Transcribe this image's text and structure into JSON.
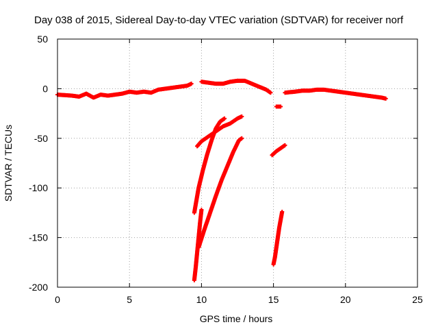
{
  "chart_data": {
    "type": "scatter",
    "title": "Day 038 of 2015, Sidereal Day-to-day VTEC variation (SDTVAR) for receiver norf",
    "xlabel": "GPS time / hours",
    "ylabel": "SDTVAR / TECUs",
    "xlim": [
      0,
      25
    ],
    "ylim": [
      -200,
      50
    ],
    "xticks": [
      0,
      5,
      10,
      15,
      20,
      25
    ],
    "yticks": [
      -200,
      -150,
      -100,
      -50,
      0,
      50
    ],
    "grid": true,
    "marker": "+",
    "color": "#ff0000",
    "series": [
      {
        "name": "arc-1",
        "points": [
          [
            0.0,
            -6
          ],
          [
            0.5,
            -6.5
          ],
          [
            1.0,
            -7
          ],
          [
            1.5,
            -8
          ],
          [
            2.0,
            -5
          ],
          [
            2.5,
            -9
          ],
          [
            3.0,
            -6
          ],
          [
            3.5,
            -7
          ],
          [
            4.0,
            -6
          ],
          [
            4.5,
            -5
          ],
          [
            5.0,
            -3
          ],
          [
            5.5,
            -4
          ],
          [
            6.0,
            -3
          ],
          [
            6.5,
            -4
          ],
          [
            7.0,
            -1
          ],
          [
            7.5,
            0
          ],
          [
            8.0,
            1
          ],
          [
            8.5,
            2
          ],
          [
            9.0,
            3
          ],
          [
            9.3,
            5
          ]
        ]
      },
      {
        "name": "arc-2",
        "points": [
          [
            10.0,
            7
          ],
          [
            10.5,
            6
          ],
          [
            11.0,
            5
          ],
          [
            11.5,
            5
          ],
          [
            12.0,
            7
          ],
          [
            12.5,
            8
          ]
        ]
      },
      {
        "name": "arc-3",
        "points": [
          [
            12.5,
            8
          ],
          [
            13.0,
            8
          ],
          [
            13.5,
            5
          ],
          [
            14.0,
            2
          ],
          [
            14.5,
            -1
          ],
          [
            14.8,
            -4
          ]
        ]
      },
      {
        "name": "arc-4",
        "points": [
          [
            15.8,
            -4
          ],
          [
            16.5,
            -3
          ],
          [
            17.0,
            -2
          ],
          [
            17.5,
            -2
          ],
          [
            18.0,
            -1
          ],
          [
            18.5,
            -1
          ],
          [
            19.0,
            -2
          ],
          [
            19.5,
            -3
          ],
          [
            20.0,
            -4
          ],
          [
            20.5,
            -5
          ],
          [
            21.0,
            -6
          ],
          [
            21.5,
            -7
          ],
          [
            22.0,
            -8
          ],
          [
            22.5,
            -9
          ],
          [
            22.8,
            -10
          ]
        ]
      },
      {
        "name": "arc-5",
        "points": [
          [
            15.2,
            -18
          ],
          [
            15.5,
            -18
          ]
        ]
      },
      {
        "name": "arc-6",
        "points": [
          [
            9.5,
            -125
          ],
          [
            9.8,
            -100
          ],
          [
            10.1,
            -82
          ],
          [
            10.4,
            -66
          ],
          [
            10.7,
            -52
          ],
          [
            11.0,
            -40
          ],
          [
            11.3,
            -33
          ],
          [
            11.6,
            -30
          ]
        ]
      },
      {
        "name": "arc-7",
        "points": [
          [
            9.7,
            -58
          ],
          [
            10.0,
            -53
          ],
          [
            10.5,
            -48
          ],
          [
            11.0,
            -43
          ],
          [
            11.5,
            -38
          ],
          [
            12.0,
            -35
          ],
          [
            12.5,
            -30
          ],
          [
            12.8,
            -28
          ]
        ]
      },
      {
        "name": "arc-8",
        "points": [
          [
            9.5,
            -193
          ],
          [
            9.6,
            -180
          ],
          [
            9.7,
            -165
          ],
          [
            9.8,
            -150
          ],
          [
            9.9,
            -135
          ],
          [
            10.0,
            -122
          ]
        ]
      },
      {
        "name": "arc-9",
        "points": [
          [
            9.8,
            -160
          ],
          [
            10.2,
            -142
          ],
          [
            10.6,
            -125
          ],
          [
            11.0,
            -108
          ],
          [
            11.4,
            -92
          ],
          [
            11.8,
            -78
          ],
          [
            12.2,
            -64
          ],
          [
            12.6,
            -52
          ],
          [
            12.8,
            -50
          ]
        ]
      },
      {
        "name": "arc-10",
        "points": [
          [
            15.0,
            -177
          ],
          [
            15.1,
            -170
          ],
          [
            15.2,
            -160
          ],
          [
            15.3,
            -150
          ],
          [
            15.4,
            -140
          ],
          [
            15.5,
            -132
          ],
          [
            15.6,
            -124
          ]
        ]
      },
      {
        "name": "arc-11",
        "points": [
          [
            14.9,
            -67
          ],
          [
            15.2,
            -63
          ],
          [
            15.5,
            -60
          ],
          [
            15.8,
            -57
          ]
        ]
      }
    ]
  }
}
